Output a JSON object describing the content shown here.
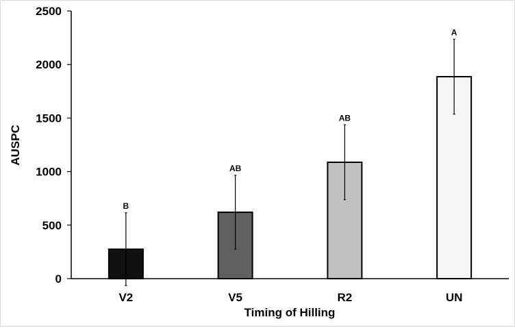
{
  "chart_data": {
    "type": "bar",
    "title": "",
    "xlabel": "Timing of Hilling",
    "ylabel": "AUSPC",
    "ylim": [
      0,
      2500
    ],
    "yticks": [
      0,
      500,
      1000,
      1500,
      2000,
      2500
    ],
    "grid": false,
    "categories": [
      "V2",
      "V5",
      "R2",
      "UN"
    ],
    "values": [
      275,
      620,
      1087,
      1886
    ],
    "errors": [
      340,
      345,
      350,
      350
    ],
    "letters": [
      "B",
      "AB",
      "AB",
      "A"
    ],
    "colors": [
      "#111111",
      "#606060",
      "#c0c0c0",
      "#f5f5f5"
    ]
  }
}
